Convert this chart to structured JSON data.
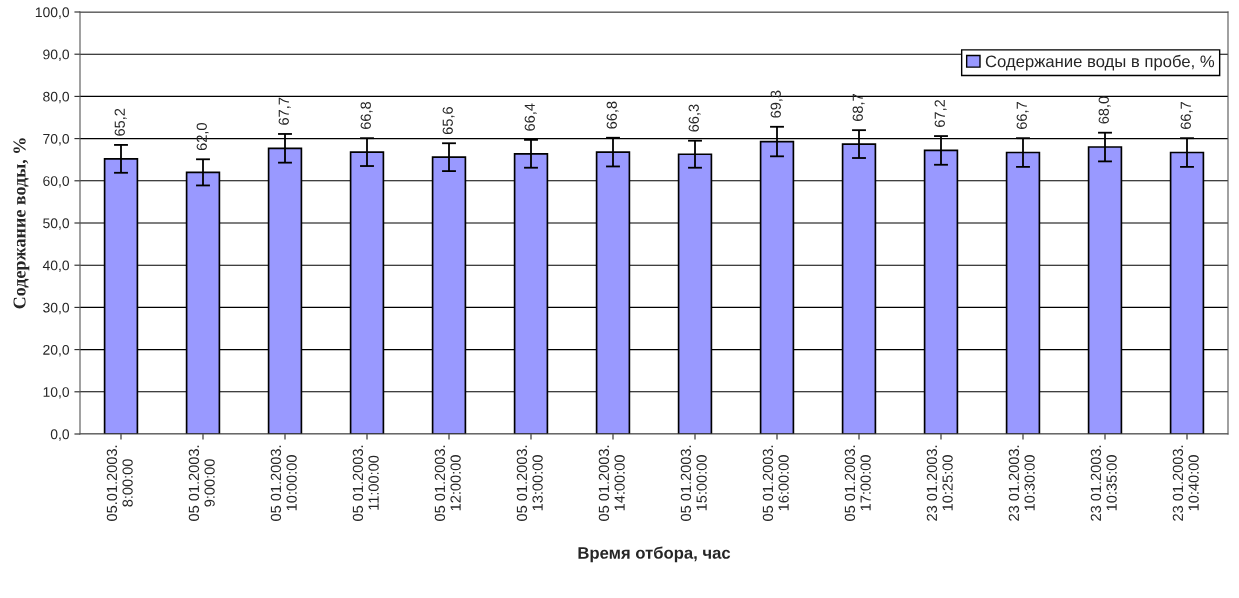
{
  "chart_data": {
    "type": "bar",
    "xlabel": "Время отбора, час",
    "ylabel": "Содержание воды, %",
    "categories": [
      "05.01.2003.\n8:00:00",
      "05 01.2003.\n9:00:00",
      "05 01.2003.\n10:00:00",
      "05 01.2003.\n11:00:00",
      "05 01.2003.\n12:00:00",
      "05 01.2003.\n13:00:00",
      "05 01.2003.\n14:00:00",
      "05 01.2003.\n15:00:00",
      "05 01.2003.\n16:00:00",
      "05 01.2003.\n17:00:00",
      "23 01.2003.\n10:25:00",
      "23 01.2003.\n10:30:00",
      "23 01.2003.\n10:35:00",
      "23 01.2003.\n10:40:00"
    ],
    "series": [
      {
        "name": "Содержание воды в пробе, %",
        "color": "#9999ff",
        "values": [
          65.2,
          62.0,
          67.7,
          66.8,
          65.6,
          66.4,
          66.8,
          66.3,
          69.3,
          68.7,
          67.2,
          66.7,
          68.0,
          66.7
        ],
        "errors": [
          3.3,
          3.1,
          3.4,
          3.3,
          3.3,
          3.3,
          3.4,
          3.2,
          3.5,
          3.3,
          3.4,
          3.4,
          3.4,
          3.4
        ],
        "value_labels": [
          "65,2",
          "62,0",
          "67,7",
          "66,8",
          "65,6",
          "66,4",
          "66,8",
          "66,3",
          "69,3",
          "68,7",
          "67,2",
          "66,7",
          "68,0",
          "66,7"
        ]
      }
    ],
    "ylim": [
      0,
      100
    ],
    "yticks": [
      {
        "value": 0,
        "label": "0,0"
      },
      {
        "value": 10,
        "label": "10,0"
      },
      {
        "value": 20,
        "label": "20,0"
      },
      {
        "value": 30,
        "label": "30,0"
      },
      {
        "value": 40,
        "label": "40,0"
      },
      {
        "value": 50,
        "label": "50,0"
      },
      {
        "value": 60,
        "label": "60,0"
      },
      {
        "value": 70,
        "label": "70,0"
      },
      {
        "value": 80,
        "label": "80,0"
      },
      {
        "value": 90,
        "label": "90,0"
      },
      {
        "value": 100,
        "label": "100,0"
      }
    ],
    "grid": "y",
    "legend": "top right"
  }
}
